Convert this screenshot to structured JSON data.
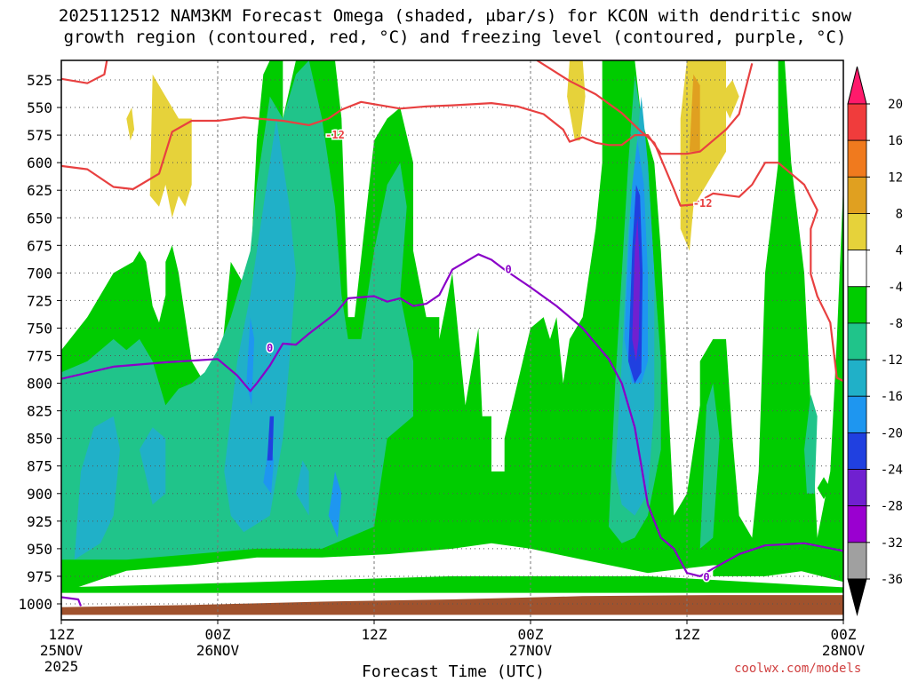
{
  "chart_data": {
    "type": "heatmap",
    "title_line1": "2025112512 NAM3KM Forecast Omega (shaded, μbar/s) for KCON with dendritic snow",
    "title_line2": "growth region (contoured, red, °C) and freezing level (contoured, purple, °C)",
    "xlabel": "Forecast Time (UTC)",
    "credit": "coolwx.com/models",
    "y_axis": {
      "label": "",
      "ticks": [
        "525",
        "550",
        "575",
        "600",
        "625",
        "650",
        "675",
        "700",
        "725",
        "750",
        "775",
        "800",
        "825",
        "850",
        "875",
        "900",
        "925",
        "950",
        "975",
        "1000"
      ],
      "range_hpa": [
        510,
        1008
      ],
      "inverted": true,
      "grid": true
    },
    "x_axis": {
      "ticks": [
        {
          "hour": 0,
          "line1": "12Z",
          "line2": "25NOV",
          "line3": "2025"
        },
        {
          "hour": 12,
          "line1": "00Z",
          "line2": "26NOV",
          "line3": ""
        },
        {
          "hour": 24,
          "line1": "12Z",
          "line2": "",
          "line3": ""
        },
        {
          "hour": 36,
          "line1": "00Z",
          "line2": "27NOV",
          "line3": ""
        },
        {
          "hour": 48,
          "line1": "12Z",
          "line2": "",
          "line3": ""
        },
        {
          "hour": 60,
          "line1": "00Z",
          "line2": "28NOV",
          "line3": ""
        }
      ],
      "range_hours": [
        0,
        60
      ],
      "grid": true
    },
    "colorbar": {
      "levels": [
        "20",
        "16",
        "12",
        "8",
        "4",
        "-4",
        "-8",
        "-12",
        "-16",
        "-20",
        "-24",
        "-28",
        "-32",
        "-36"
      ],
      "colors": [
        "#ff1a6b",
        "#f03c3c",
        "#f07a1e",
        "#e0a020",
        "#e6d23a",
        "#ffffff",
        "#00cc00",
        "#20c48a",
        "#20b0c8",
        "#1e96f0",
        "#2040e0",
        "#7020d0",
        "#9a00d0",
        "#a0a0a0",
        "#000000"
      ]
    },
    "omega_regions": [
      {
        "level": "-4",
        "color": "#00cc00",
        "name": "omega -4 to -8"
      },
      {
        "level": "-8",
        "color": "#20c48a",
        "name": "omega -8 to -12"
      },
      {
        "level": "-12",
        "color": "#20b0c8",
        "name": "omega -12 to -16"
      },
      {
        "level": "-16",
        "color": "#1e96f0",
        "name": "omega -16 to -20"
      },
      {
        "level": "-20",
        "color": "#2040e0",
        "name": "omega -20 to -24"
      },
      {
        "level": "-24",
        "color": "#7020d0",
        "name": "omega -24 to -28"
      },
      {
        "level": "4",
        "color": "#e6d23a",
        "name": "omega 4 to 8"
      },
      {
        "level": "8",
        "color": "#e0a020",
        "name": "omega 8 to 12"
      }
    ],
    "contours": {
      "dgz_upper": {
        "label": "-12",
        "color": "#e84040",
        "points": [
          [
            0,
            524
          ],
          [
            2,
            528
          ],
          [
            3.3,
            520
          ],
          [
            3.5,
            505
          ]
        ]
      },
      "dgz_m12": {
        "label": "-12",
        "color": "#e84040",
        "points": [
          [
            0,
            603
          ],
          [
            2,
            606
          ],
          [
            4,
            622
          ],
          [
            5.5,
            624
          ],
          [
            7.5,
            610
          ],
          [
            8.5,
            572
          ],
          [
            10,
            562
          ],
          [
            12,
            562
          ],
          [
            14,
            559
          ],
          [
            17,
            562
          ],
          [
            19,
            566
          ],
          [
            20.5,
            560
          ],
          [
            21.5,
            552
          ],
          [
            23,
            545
          ],
          [
            26,
            551
          ],
          [
            28,
            549
          ],
          [
            30,
            548
          ],
          [
            33,
            546
          ],
          [
            35,
            549
          ],
          [
            37,
            556
          ],
          [
            38.5,
            570
          ],
          [
            39,
            581
          ],
          [
            40,
            577
          ],
          [
            41,
            582
          ],
          [
            42,
            584
          ],
          [
            43,
            584
          ],
          [
            44,
            575
          ],
          [
            45,
            575
          ],
          [
            46,
            592
          ],
          [
            47,
            592
          ],
          [
            48,
            592
          ],
          [
            49,
            590
          ],
          [
            50,
            580
          ],
          [
            51,
            570
          ],
          [
            52,
            556
          ],
          [
            53,
            510
          ]
        ]
      },
      "dgz_m12_lower": {
        "label": "-12",
        "color": "#e84040",
        "points": [
          [
            36.5,
            505
          ],
          [
            39,
            526
          ],
          [
            41,
            538
          ],
          [
            43,
            555
          ],
          [
            44.5,
            572
          ],
          [
            45.5,
            582
          ],
          [
            47,
            624
          ],
          [
            47.5,
            639
          ],
          [
            48.5,
            638
          ],
          [
            50,
            628
          ],
          [
            52,
            631
          ],
          [
            53,
            620
          ],
          [
            54,
            600
          ],
          [
            55,
            600
          ],
          [
            57,
            620
          ],
          [
            58,
            643
          ],
          [
            57.5,
            660
          ],
          [
            57.5,
            701
          ],
          [
            58,
            721
          ],
          [
            59,
            745
          ],
          [
            59.5,
            795
          ],
          [
            60,
            798
          ],
          [
            61,
            792
          ]
        ]
      },
      "freezing_level": {
        "label": "0",
        "color": "#8a00c8",
        "points": [
          [
            0,
            796
          ],
          [
            4,
            785
          ],
          [
            8,
            781
          ],
          [
            12,
            778
          ],
          [
            13.5,
            793
          ],
          [
            14.5,
            807
          ],
          [
            15,
            800
          ],
          [
            16,
            784
          ],
          [
            17,
            764
          ],
          [
            18,
            765
          ],
          [
            19,
            755
          ],
          [
            21,
            737
          ],
          [
            22,
            723
          ],
          [
            24,
            721
          ],
          [
            25,
            726
          ],
          [
            26,
            723
          ],
          [
            27,
            730
          ],
          [
            28,
            728
          ],
          [
            29,
            720
          ],
          [
            30,
            697
          ],
          [
            31,
            690
          ],
          [
            32,
            683
          ],
          [
            33,
            688
          ],
          [
            34,
            697
          ],
          [
            36,
            713
          ],
          [
            38,
            730
          ],
          [
            40,
            750
          ],
          [
            42,
            778
          ],
          [
            43,
            800
          ],
          [
            44,
            840
          ],
          [
            44.5,
            875
          ],
          [
            45,
            910
          ],
          [
            46,
            940
          ],
          [
            47,
            950
          ],
          [
            48,
            972
          ],
          [
            49,
            975
          ],
          [
            50,
            968
          ],
          [
            52,
            955
          ],
          [
            54,
            947
          ],
          [
            57,
            945
          ],
          [
            60,
            952
          ]
        ]
      },
      "freezing_level_low": {
        "label": "",
        "color": "#8a00c8",
        "points": [
          [
            0,
            994
          ],
          [
            1.3,
            996
          ],
          [
            1.5,
            1002
          ]
        ]
      }
    },
    "terrain": {
      "color": "#a0522d",
      "top_hpa_start": 1003,
      "top_hpa_end": 992
    }
  }
}
